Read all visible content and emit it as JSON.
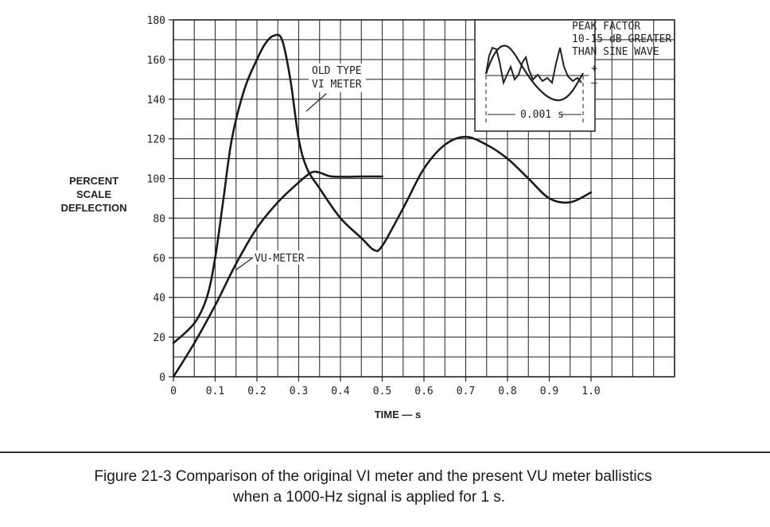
{
  "chart_data": {
    "type": "line",
    "ylabel": [
      "PERCENT",
      "SCALE",
      "DEFLECTION"
    ],
    "xlabel": "TIME — s",
    "xlim": [
      0,
      1.2
    ],
    "ylim": [
      0,
      180
    ],
    "x_ticks": [
      0,
      0.1,
      0.2,
      0.3,
      0.4,
      0.5,
      0.6,
      0.7,
      0.8,
      0.9,
      1.0
    ],
    "x_tick_labels": [
      "0",
      "0.1",
      "0.2",
      "0.3",
      "0.4",
      "0.5",
      "0.6",
      "0.7",
      "0.8",
      "0.9",
      "1.0"
    ],
    "y_ticks": [
      0,
      20,
      40,
      60,
      80,
      100,
      120,
      140,
      160,
      180
    ],
    "y_tick_labels": [
      "0",
      "20",
      "40",
      "60",
      "80",
      "100",
      "120",
      "140",
      "160",
      "180"
    ],
    "grid": true,
    "series": [
      {
        "name": "OLD TYPE VI METER",
        "points": [
          [
            0,
            17
          ],
          [
            0.05,
            27
          ],
          [
            0.08,
            40
          ],
          [
            0.1,
            60
          ],
          [
            0.12,
            90
          ],
          [
            0.14,
            120
          ],
          [
            0.17,
            145
          ],
          [
            0.2,
            160
          ],
          [
            0.22,
            168
          ],
          [
            0.24,
            172
          ],
          [
            0.26,
            170
          ],
          [
            0.28,
            150
          ],
          [
            0.3,
            120
          ],
          [
            0.32,
            105
          ],
          [
            0.35,
            95
          ],
          [
            0.4,
            80
          ],
          [
            0.45,
            70
          ],
          [
            0.48,
            64
          ],
          [
            0.5,
            66
          ],
          [
            0.55,
            85
          ],
          [
            0.6,
            105
          ],
          [
            0.65,
            117
          ],
          [
            0.7,
            121
          ],
          [
            0.75,
            117
          ],
          [
            0.8,
            110
          ],
          [
            0.85,
            100
          ],
          [
            0.9,
            90
          ],
          [
            0.95,
            88
          ],
          [
            1.0,
            93
          ]
        ]
      },
      {
        "name": "VU-METER",
        "points": [
          [
            0,
            0
          ],
          [
            0.05,
            17
          ],
          [
            0.1,
            36
          ],
          [
            0.15,
            57
          ],
          [
            0.2,
            75
          ],
          [
            0.25,
            88
          ],
          [
            0.3,
            98
          ],
          [
            0.33,
            103
          ],
          [
            0.35,
            103
          ],
          [
            0.38,
            101
          ],
          [
            0.45,
            101
          ],
          [
            0.5,
            101
          ]
        ]
      }
    ],
    "annotations": [
      "OLD TYPE",
      "VI METER",
      "VU-METER"
    ]
  },
  "inset": {
    "title_lines": [
      "PEAK FACTOR",
      "10-15 dB GREATER",
      "THAN SINE WAVE"
    ],
    "plus": "+",
    "minus": "—",
    "duration": "0.001 s"
  },
  "caption": {
    "line1": "Figure 21-3  Comparison of the original VI meter and the present VU meter ballistics",
    "line2": "when a 1000-Hz signal is applied for 1 s."
  }
}
